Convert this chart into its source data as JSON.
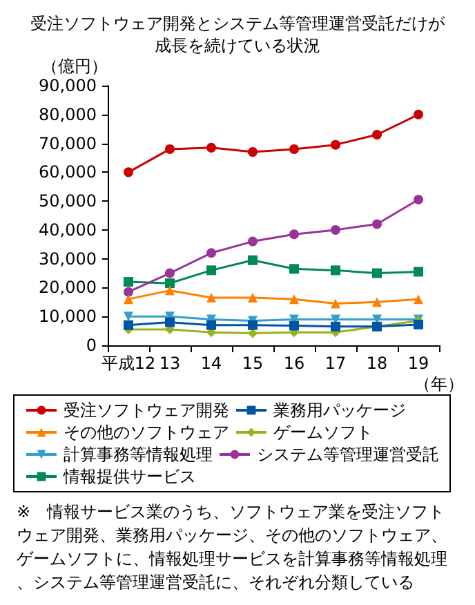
{
  "chart_data": {
    "type": "line",
    "title": "受注ソフトウェア開発とシステム等管理運営受託だけが成長を続けている状況",
    "ylabel": "（億円）",
    "xlabel": "（年）",
    "categories": [
      "平成12",
      "13",
      "14",
      "15",
      "16",
      "17",
      "18",
      "19"
    ],
    "ylim": [
      0,
      90000
    ],
    "yticks": [
      0,
      {
        "value": 10000,
        "label": "10,000"
      },
      {
        "value": 20000,
        "label": "20,000"
      },
      {
        "value": 30000,
        "label": "30,000"
      },
      {
        "value": 40000,
        "label": "40,000"
      },
      {
        "value": 50000,
        "label": "50,000"
      },
      {
        "value": 60000,
        "label": "60,000"
      },
      {
        "value": 70000,
        "label": "70,000"
      },
      {
        "value": 80000,
        "label": "80,000"
      },
      {
        "value": 90000,
        "label": "90,000"
      }
    ],
    "grid": false,
    "legend": "bottom",
    "line_style": "solid",
    "series": [
      {
        "name": "受注ソフトウェア開発",
        "color": "#cc0000",
        "marker": "circle",
        "values": [
          60000,
          68000,
          68500,
          67000,
          68000,
          69500,
          73000,
          80000
        ]
      },
      {
        "name": "業務用パッケージ",
        "color": "#0055a5",
        "marker": "square",
        "values": [
          7000,
          8000,
          7000,
          7000,
          6800,
          6500,
          6500,
          7200
        ]
      },
      {
        "name": "その他のソフトウェア",
        "color": "#ff8000",
        "marker": "triangle",
        "values": [
          16000,
          19000,
          16500,
          16500,
          16000,
          14500,
          15000,
          16000
        ]
      },
      {
        "name": "ゲームソフト",
        "color": "#99b31a",
        "marker": "diamond",
        "values": [
          5500,
          5500,
          4500,
          4200,
          4500,
          4500,
          6500,
          8500
        ]
      },
      {
        "name": "計算事務等情報処理",
        "color": "#33a0cc",
        "marker": "triangle-down",
        "values": [
          10000,
          10000,
          9000,
          8500,
          9000,
          9000,
          9000,
          9000
        ]
      },
      {
        "name": "システム等管理運営受託",
        "color": "#993399",
        "marker": "circle",
        "values": [
          18500,
          25000,
          32000,
          36000,
          38500,
          40000,
          42000,
          50500
        ]
      },
      {
        "name": "情報提供サービス",
        "color": "#008855",
        "marker": "square",
        "values": [
          22000,
          21500,
          26000,
          29500,
          26500,
          26000,
          25000,
          25500
        ]
      }
    ],
    "annotations": [
      "※　情報サービス業のうち、ソフトウェア業を受注ソフトウェア開発、業務用パッケージ、その他のソフトウェア、ゲームソフトに、情報処理サービスを計算事務等情報処理、システム等管理運営受託に、それぞれ分類している"
    ]
  }
}
